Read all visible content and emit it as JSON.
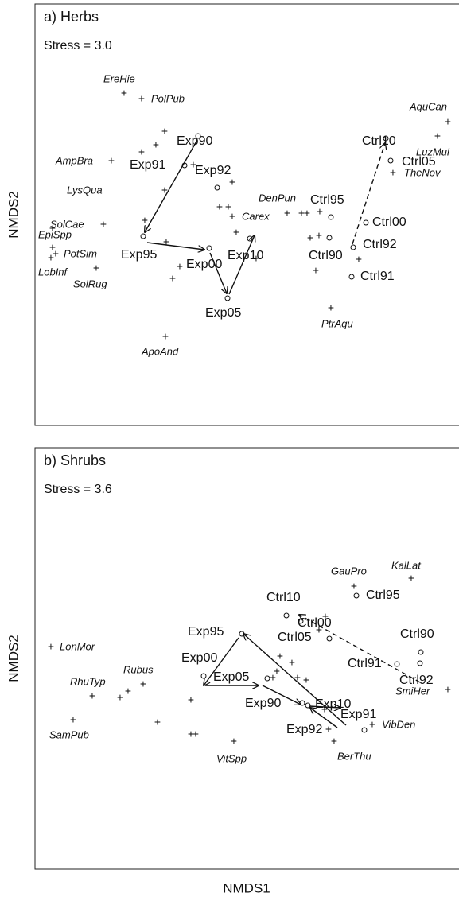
{
  "x_axis": "NMDS1",
  "panels": [
    {
      "title": "a) Herbs",
      "stress": "Stress = 3.0",
      "y_axis": "NMDS2",
      "species": [
        "EreHie",
        "PolPub",
        "AquCan",
        "LuzMul",
        "AmpBra",
        "LysQua",
        "DenPun",
        "Carex",
        "TheNov",
        "SolCae",
        "EpiSpp",
        "PotSim",
        "LobInf",
        "SolRug",
        "PtrAqu",
        "ApoAnd"
      ],
      "sites": [
        "Exp90",
        "Exp91",
        "Exp92",
        "Ctrl10",
        "Ctrl05",
        "Ctrl95",
        "Ctrl00",
        "Exp95",
        "Exp00",
        "Exp10",
        "Ctrl90",
        "Ctrl92",
        "Ctrl91",
        "Exp05"
      ]
    },
    {
      "title": "b) Shrubs",
      "stress": "Stress = 3.6",
      "y_axis": "NMDS2",
      "species": [
        "GauPro",
        "KalLat",
        "LonMor",
        "Rubus",
        "RhuTyp",
        "SmiHer",
        "SamPub",
        "VitSpp",
        "VibDen",
        "BerThu"
      ],
      "sites": [
        "Ctrl95",
        "Ctrl10",
        "Ctrl00",
        "Exp95",
        "Ctrl05",
        "Ctrl90",
        "Ctrl91",
        "Ctrl92",
        "Exp00",
        "Exp05",
        "Exp90",
        "Exp10",
        "Exp91",
        "Exp92"
      ]
    }
  ]
}
